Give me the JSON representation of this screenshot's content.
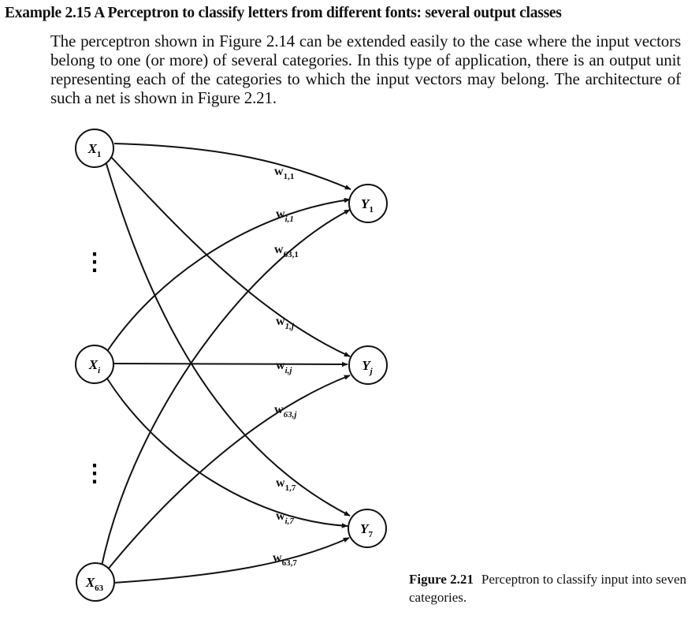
{
  "heading": "Example 2.15 A Perceptron to classify letters from different fonts: several output classes",
  "paragraph": "The perceptron shown in Figure 2.14 can be extended easily to the case where the input vectors belong to one (or more) of several categories. In this type of application, there is an output unit representing each of the categories to which the input vectors may belong. The architecture of such a net is shown in Figure 2.21.",
  "figure": {
    "input_units": [
      {
        "main": "X",
        "sub": "1"
      },
      {
        "main": "X",
        "sub": "i"
      },
      {
        "main": "X",
        "sub": "63"
      }
    ],
    "output_units": [
      {
        "main": "Y",
        "sub": "1"
      },
      {
        "main": "Y",
        "sub": "j"
      },
      {
        "main": "Y",
        "sub": "7"
      }
    ],
    "weights": [
      {
        "main": "w",
        "sub": "1,1"
      },
      {
        "main": "w",
        "sub": "i,1"
      },
      {
        "main": "w",
        "sub": "63,1"
      },
      {
        "main": "w",
        "sub": "1,j"
      },
      {
        "main": "w",
        "sub": "i,j"
      },
      {
        "main": "w",
        "sub": "63,j"
      },
      {
        "main": "w",
        "sub": "1,7"
      },
      {
        "main": "w",
        "sub": "i,7"
      },
      {
        "main": "w",
        "sub": "63,7"
      }
    ],
    "ellipsis_marks": [
      "⋮",
      "⋮"
    ],
    "caption_number": "Figure 2.21",
    "caption_text": "Perceptron to classify input into seven categories."
  }
}
